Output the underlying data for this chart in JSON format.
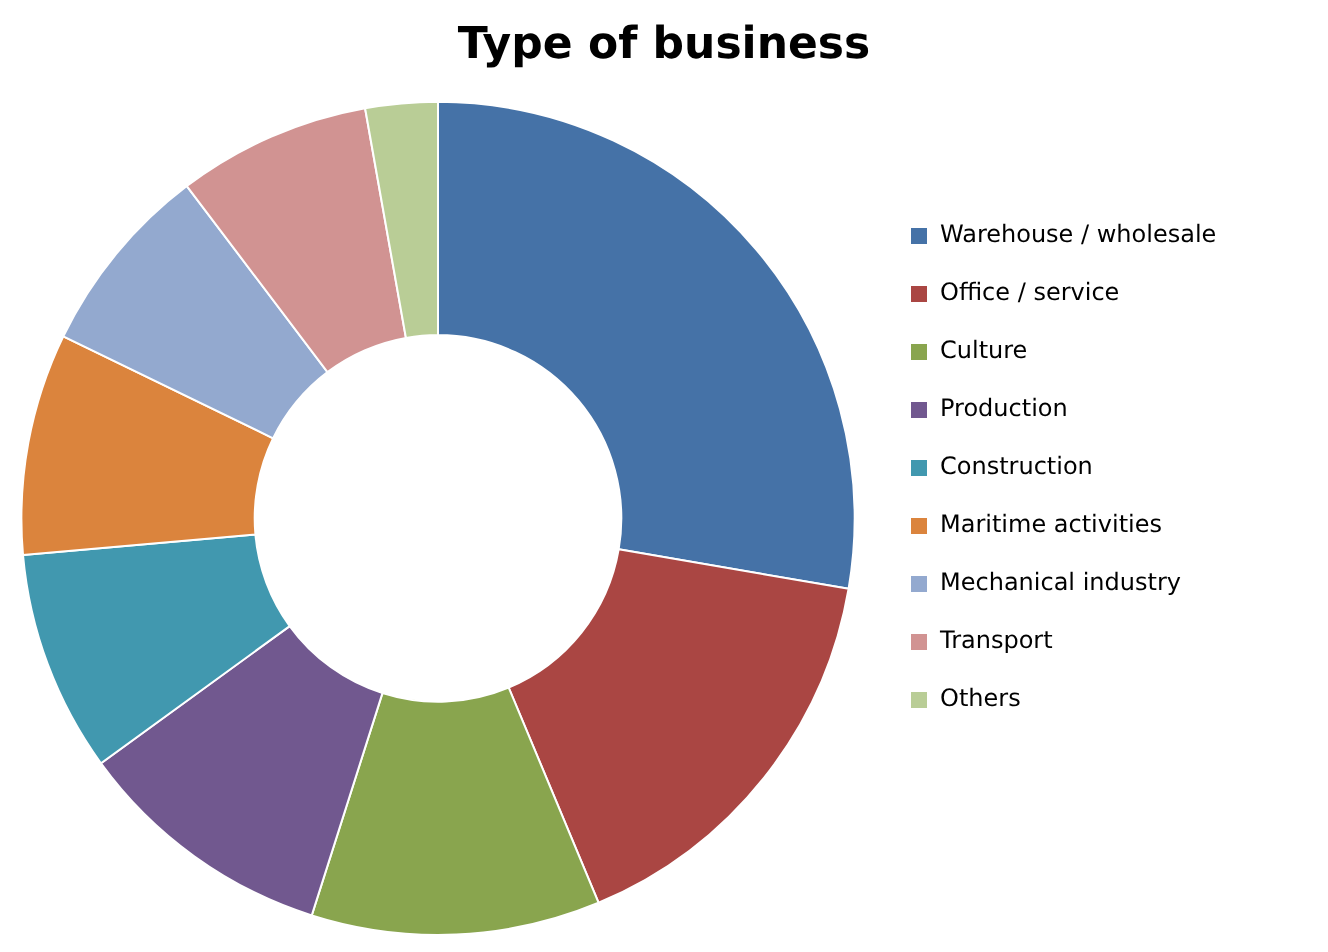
{
  "chart_data": {
    "type": "donut",
    "title": "Type of business",
    "categories": [
      "Warehouse / wholesale",
      "Office / service",
      "Culture",
      "Production",
      "Construction",
      "Maritime activities",
      "Mechanical industry",
      "Transport",
      "Others"
    ],
    "values": [
      27.7,
      16,
      11.2,
      10.1,
      8.6,
      8.6,
      7.5,
      7.5,
      2.8
    ],
    "colors": [
      "#4572a7",
      "#aa4643",
      "#89a54e",
      "#71588f",
      "#4198af",
      "#db843d",
      "#93a9cf",
      "#d19392",
      "#b9cd96"
    ],
    "legend": "right"
  }
}
